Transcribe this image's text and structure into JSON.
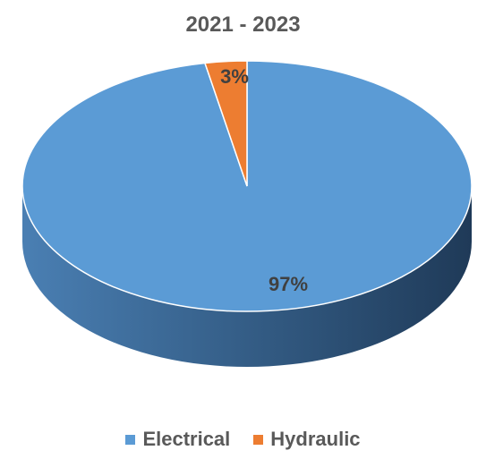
{
  "chart_data": {
    "type": "pie",
    "title": "2021 - 2023",
    "series": [
      {
        "name": "",
        "values": [
          97,
          3
        ]
      }
    ],
    "categories": [
      "Electrical",
      "Hydraulic"
    ],
    "slices": [
      {
        "label": "Electrical",
        "value": 97,
        "display": "97%",
        "color": "#5B9BD5"
      },
      {
        "label": "Hydraulic",
        "value": 3,
        "display": "3%",
        "color": "#ED7D31"
      }
    ],
    "legend": "bottom"
  }
}
